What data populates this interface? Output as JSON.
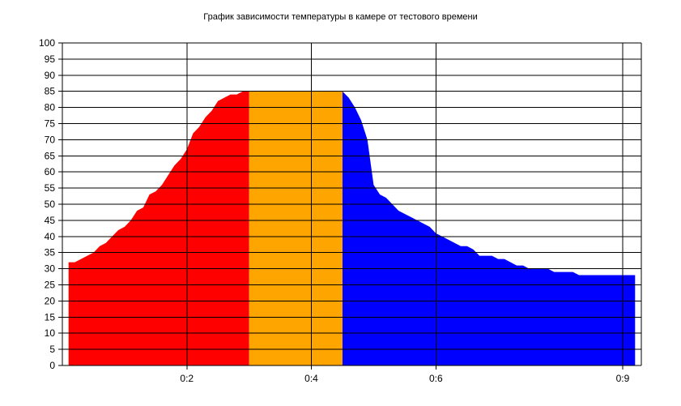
{
  "chart_data": {
    "type": "area",
    "title": "График зависимости температуры в камере от тестового времени",
    "xlabel": "",
    "ylabel": "",
    "ylim": [
      0,
      100
    ],
    "xlim": [
      0,
      0.9
    ],
    "yticks": [
      0,
      5,
      10,
      15,
      20,
      25,
      30,
      35,
      40,
      45,
      50,
      55,
      60,
      65,
      70,
      75,
      80,
      85,
      90,
      95,
      100
    ],
    "xticks": [
      {
        "value": 0.2,
        "label": "0:2"
      },
      {
        "value": 0.4,
        "label": "0:4"
      },
      {
        "value": 0.6,
        "label": "0:6"
      },
      {
        "value": 0.9,
        "label": "0:9"
      }
    ],
    "grid": true,
    "colors": {
      "heating": "#ff0000",
      "hold": "#ffa500",
      "cooling": "#0000ff"
    },
    "series": [
      {
        "name": "",
        "color": "#ff0000",
        "x": [
          0.01,
          0.02,
          0.03,
          0.04,
          0.05,
          0.06,
          0.07,
          0.08,
          0.09,
          0.1,
          0.11,
          0.12,
          0.13,
          0.14,
          0.15,
          0.16,
          0.17,
          0.18,
          0.19,
          0.2,
          0.21,
          0.22,
          0.23,
          0.24,
          0.25,
          0.26,
          0.27,
          0.28,
          0.29,
          0.3
        ],
        "y": [
          32,
          32,
          33,
          34,
          35,
          37,
          38,
          40,
          42,
          43,
          45,
          48,
          49,
          53,
          54,
          56,
          59,
          62,
          64,
          67,
          72,
          74,
          77,
          79,
          82,
          83,
          84,
          84,
          85,
          85
        ]
      },
      {
        "name": "",
        "color": "#ffa500",
        "x": [
          0.3,
          0.45
        ],
        "y": [
          85,
          85
        ]
      },
      {
        "name": "",
        "color": "#0000ff",
        "x": [
          0.45,
          0.46,
          0.47,
          0.48,
          0.49,
          0.5,
          0.51,
          0.52,
          0.53,
          0.54,
          0.55,
          0.56,
          0.57,
          0.58,
          0.59,
          0.6,
          0.61,
          0.62,
          0.63,
          0.64,
          0.65,
          0.66,
          0.67,
          0.68,
          0.69,
          0.7,
          0.71,
          0.72,
          0.73,
          0.74,
          0.75,
          0.76,
          0.77,
          0.78,
          0.79,
          0.8,
          0.81,
          0.82,
          0.83,
          0.84,
          0.85,
          0.86,
          0.87,
          0.88,
          0.89,
          0.9,
          0.91,
          0.92
        ],
        "y": [
          85,
          83,
          80,
          76,
          70,
          56,
          53,
          52,
          50,
          48,
          47,
          46,
          45,
          44,
          43,
          41,
          40,
          39,
          38,
          37,
          37,
          36,
          34,
          34,
          34,
          33,
          33,
          32,
          31,
          31,
          30,
          30,
          30,
          30,
          29,
          29,
          29,
          29,
          28,
          28,
          28,
          28,
          28,
          28,
          28,
          28,
          28,
          28
        ]
      }
    ]
  }
}
